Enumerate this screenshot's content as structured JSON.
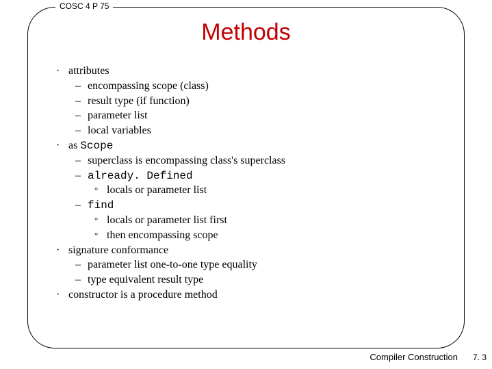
{
  "header": {
    "course": "COSC 4 P 75",
    "title": "Methods"
  },
  "bullets": {
    "b1": "attributes",
    "b1_1": "encompassing scope (class)",
    "b1_2": "result type (if function)",
    "b1_3": "parameter list",
    "b1_4": "local variables",
    "b2a": "as ",
    "b2b": "Scope",
    "b2_1": "superclass is encompassing class's superclass",
    "b2_2": "already. Defined",
    "b2_2_1": "locals or parameter list",
    "b2_3": "find",
    "b2_3_1": "locals or parameter list first",
    "b2_3_2": "then encompassing scope",
    "b3": "signature conformance",
    "b3_1": "parameter list one-to-one type equality",
    "b3_2": "type equivalent result type",
    "b4": "constructor is a procedure method"
  },
  "footer": {
    "text": "Compiler Construction",
    "page": "7. 3"
  },
  "colors": {
    "title": "#c00000",
    "text": "#000000",
    "border": "#000000"
  }
}
